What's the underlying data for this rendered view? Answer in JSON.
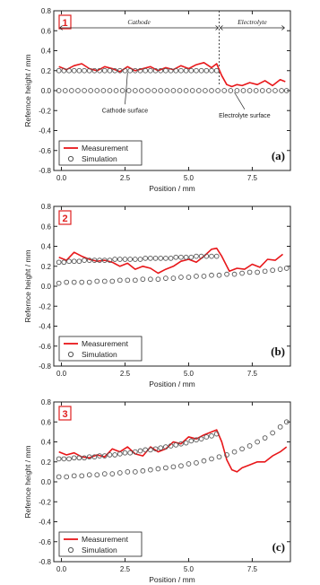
{
  "figure": {
    "colors": {
      "measurement": "#e8171a",
      "simulation": "#555555",
      "axis": "#222222",
      "badge": "#e02020"
    }
  },
  "chart_data": [
    {
      "type": "line",
      "panel_number": "1",
      "panel_letter": "(a)",
      "xlabel": "Position  /  mm",
      "ylabel": "Refernce height  /  mm",
      "xlim": [
        -0.3,
        9.0
      ],
      "ylim": [
        -0.8,
        0.8
      ],
      "xticks": [
        "0.0",
        "2.5",
        "5.0",
        "7.5"
      ],
      "yticks": [
        "0.8",
        "0.6",
        "0.4",
        "0.2",
        "0.0",
        "-0.2",
        "-0.4",
        "-0.6",
        "-0.8"
      ],
      "legend": {
        "position": "bottom-left",
        "entries": [
          "Measurement",
          "Simulation"
        ]
      },
      "regions": [
        {
          "label": "Cathode",
          "from": -0.1,
          "to": 6.2
        },
        {
          "label": "Electrolyte",
          "from": 6.2,
          "to": 8.8
        }
      ],
      "annotations": [
        {
          "text": "Cathode surface",
          "x": 2.5,
          "y": -0.2
        },
        {
          "text": "Electrolyte surface",
          "x": 7.2,
          "y": -0.25
        }
      ],
      "series": [
        {
          "name": "Measurement",
          "style": "line",
          "x": [
            -0.1,
            0.2,
            0.5,
            0.8,
            1.1,
            1.4,
            1.7,
            2.0,
            2.3,
            2.6,
            2.9,
            3.2,
            3.5,
            3.8,
            4.1,
            4.4,
            4.7,
            5.0,
            5.3,
            5.6,
            5.9,
            6.1,
            6.3,
            6.5,
            6.7,
            6.9,
            7.1,
            7.4,
            7.7,
            8.0,
            8.3,
            8.6,
            8.8
          ],
          "y": [
            0.24,
            0.21,
            0.25,
            0.27,
            0.22,
            0.2,
            0.24,
            0.22,
            0.19,
            0.24,
            0.2,
            0.22,
            0.24,
            0.2,
            0.23,
            0.21,
            0.25,
            0.22,
            0.26,
            0.28,
            0.23,
            0.27,
            0.15,
            0.06,
            0.04,
            0.06,
            0.05,
            0.08,
            0.06,
            0.1,
            0.05,
            0.11,
            0.09
          ]
        },
        {
          "name": "Simulation",
          "style": "markers",
          "x": [
            -0.1,
            0.1,
            0.3,
            0.5,
            0.7,
            0.9,
            1.1,
            1.3,
            1.5,
            1.7,
            1.9,
            2.1,
            2.3,
            2.5,
            2.7,
            2.9,
            3.1,
            3.3,
            3.5,
            3.7,
            3.9,
            4.1,
            4.3,
            4.5,
            4.7,
            4.9,
            5.1,
            5.3,
            5.5,
            5.7,
            5.9,
            6.1,
            -0.1,
            0.15,
            0.4,
            0.65,
            0.9,
            1.15,
            1.4,
            1.65,
            1.9,
            2.15,
            2.4,
            2.65,
            2.9,
            3.15,
            3.4,
            3.65,
            3.9,
            4.15,
            4.4,
            4.65,
            4.9,
            5.15,
            5.4,
            5.65,
            5.9,
            6.15,
            6.4,
            6.65,
            6.9,
            7.15,
            7.4,
            7.65,
            7.9,
            8.15,
            8.4,
            8.65,
            8.85
          ],
          "y": [
            0.2,
            0.2,
            0.2,
            0.2,
            0.2,
            0.2,
            0.2,
            0.2,
            0.2,
            0.2,
            0.2,
            0.2,
            0.2,
            0.2,
            0.2,
            0.2,
            0.2,
            0.2,
            0.2,
            0.2,
            0.2,
            0.2,
            0.2,
            0.2,
            0.2,
            0.2,
            0.2,
            0.2,
            0.2,
            0.2,
            0.2,
            0.2,
            0.0,
            0.0,
            0.0,
            0.0,
            0.0,
            0.0,
            0.0,
            0.0,
            0.0,
            0.0,
            0.0,
            0.0,
            0.0,
            0.0,
            0.0,
            0.0,
            0.0,
            0.0,
            0.0,
            0.0,
            0.0,
            0.0,
            0.0,
            0.0,
            0.0,
            0.0,
            0.0,
            0.0,
            0.0,
            0.0,
            0.0,
            0.0,
            0.0,
            0.0,
            0.0,
            0.0,
            0.0
          ]
        }
      ]
    },
    {
      "type": "line",
      "panel_number": "2",
      "panel_letter": "(b)",
      "xlabel": "Position  /  mm",
      "ylabel": "Refernce height  /  mm",
      "xlim": [
        -0.3,
        9.0
      ],
      "ylim": [
        -0.8,
        0.8
      ],
      "xticks": [
        "0.0",
        "2.5",
        "5.0",
        "7.5"
      ],
      "yticks": [
        "0.8",
        "0.6",
        "0.4",
        "0.2",
        "0.0",
        "-0.2",
        "-0.4",
        "-0.6",
        "-0.8"
      ],
      "legend": {
        "position": "bottom-left",
        "entries": [
          "Measurement",
          "Simulation"
        ]
      },
      "series": [
        {
          "name": "Measurement",
          "style": "line",
          "x": [
            -0.1,
            0.2,
            0.5,
            0.8,
            1.1,
            1.4,
            1.7,
            2.0,
            2.3,
            2.6,
            2.9,
            3.2,
            3.5,
            3.8,
            4.1,
            4.4,
            4.7,
            5.0,
            5.3,
            5.6,
            5.9,
            6.1,
            6.3,
            6.6,
            6.9,
            7.2,
            7.5,
            7.8,
            8.1,
            8.4,
            8.7
          ],
          "y": [
            0.29,
            0.26,
            0.34,
            0.3,
            0.27,
            0.25,
            0.26,
            0.24,
            0.2,
            0.23,
            0.17,
            0.2,
            0.18,
            0.13,
            0.17,
            0.2,
            0.25,
            0.27,
            0.24,
            0.3,
            0.37,
            0.38,
            0.3,
            0.15,
            0.18,
            0.17,
            0.22,
            0.19,
            0.27,
            0.26,
            0.32
          ]
        },
        {
          "name": "Simulation",
          "style": "markers",
          "x": [
            -0.1,
            0.1,
            0.3,
            0.5,
            0.7,
            0.9,
            1.1,
            1.3,
            1.5,
            1.7,
            1.9,
            2.1,
            2.3,
            2.5,
            2.7,
            2.9,
            3.1,
            3.3,
            3.5,
            3.7,
            3.9,
            4.1,
            4.3,
            4.5,
            4.7,
            4.9,
            5.1,
            5.3,
            5.5,
            5.7,
            5.9,
            6.1,
            -0.1,
            0.2,
            0.5,
            0.8,
            1.1,
            1.4,
            1.7,
            2.0,
            2.3,
            2.6,
            2.9,
            3.2,
            3.5,
            3.8,
            4.1,
            4.4,
            4.7,
            5.0,
            5.3,
            5.6,
            5.9,
            6.2,
            6.5,
            6.8,
            7.1,
            7.4,
            7.7,
            8.0,
            8.3,
            8.6,
            8.85
          ],
          "y": [
            0.24,
            0.24,
            0.25,
            0.25,
            0.25,
            0.26,
            0.26,
            0.26,
            0.26,
            0.26,
            0.26,
            0.27,
            0.27,
            0.27,
            0.27,
            0.27,
            0.27,
            0.28,
            0.28,
            0.28,
            0.28,
            0.28,
            0.28,
            0.29,
            0.29,
            0.29,
            0.29,
            0.3,
            0.3,
            0.3,
            0.3,
            0.3,
            0.03,
            0.04,
            0.04,
            0.04,
            0.04,
            0.05,
            0.05,
            0.05,
            0.06,
            0.06,
            0.06,
            0.07,
            0.07,
            0.07,
            0.08,
            0.08,
            0.09,
            0.09,
            0.1,
            0.1,
            0.11,
            0.11,
            0.12,
            0.12,
            0.13,
            0.14,
            0.14,
            0.15,
            0.16,
            0.17,
            0.18
          ]
        }
      ]
    },
    {
      "type": "line",
      "panel_number": "3",
      "panel_letter": "(c)",
      "xlabel": "Position  /  mm",
      "ylabel": "Refernce height  /  mm",
      "xlim": [
        -0.3,
        9.0
      ],
      "ylim": [
        -0.8,
        0.8
      ],
      "xticks": [
        "0.0",
        "2.5",
        "5.0",
        "7.5"
      ],
      "yticks": [
        "0.8",
        "0.6",
        "0.4",
        "0.2",
        "0.0",
        "-0.2",
        "-0.4",
        "-0.6",
        "-0.8"
      ],
      "legend": {
        "position": "bottom-left",
        "entries": [
          "Measurement",
          "Simulation"
        ]
      },
      "series": [
        {
          "name": "Measurement",
          "style": "line",
          "x": [
            -0.1,
            0.2,
            0.5,
            0.8,
            1.1,
            1.4,
            1.7,
            2.0,
            2.3,
            2.6,
            2.9,
            3.2,
            3.5,
            3.8,
            4.1,
            4.4,
            4.7,
            5.0,
            5.3,
            5.6,
            5.9,
            6.1,
            6.3,
            6.5,
            6.7,
            6.9,
            7.1,
            7.4,
            7.7,
            8.0,
            8.3,
            8.6,
            8.85
          ],
          "y": [
            0.3,
            0.27,
            0.29,
            0.25,
            0.24,
            0.27,
            0.25,
            0.33,
            0.3,
            0.35,
            0.28,
            0.26,
            0.35,
            0.3,
            0.33,
            0.4,
            0.38,
            0.45,
            0.43,
            0.47,
            0.5,
            0.52,
            0.4,
            0.22,
            0.12,
            0.1,
            0.14,
            0.17,
            0.2,
            0.2,
            0.26,
            0.3,
            0.35
          ]
        },
        {
          "name": "Simulation",
          "style": "markers",
          "x": [
            -0.1,
            0.1,
            0.3,
            0.5,
            0.7,
            0.9,
            1.1,
            1.3,
            1.5,
            1.7,
            1.9,
            2.1,
            2.3,
            2.5,
            2.7,
            2.9,
            3.1,
            3.3,
            3.5,
            3.7,
            3.9,
            4.1,
            4.3,
            4.5,
            4.7,
            4.9,
            5.1,
            5.3,
            5.5,
            5.7,
            5.9,
            6.1,
            -0.1,
            0.2,
            0.5,
            0.8,
            1.1,
            1.4,
            1.7,
            2.0,
            2.3,
            2.6,
            2.9,
            3.2,
            3.5,
            3.8,
            4.1,
            4.4,
            4.7,
            5.0,
            5.3,
            5.6,
            5.9,
            6.2,
            6.5,
            6.8,
            7.1,
            7.4,
            7.7,
            8.0,
            8.3,
            8.6,
            8.85
          ],
          "y": [
            0.23,
            0.23,
            0.23,
            0.24,
            0.24,
            0.24,
            0.25,
            0.25,
            0.26,
            0.26,
            0.27,
            0.27,
            0.28,
            0.29,
            0.29,
            0.3,
            0.31,
            0.32,
            0.32,
            0.33,
            0.34,
            0.35,
            0.36,
            0.37,
            0.38,
            0.39,
            0.41,
            0.42,
            0.43,
            0.45,
            0.46,
            0.48,
            0.05,
            0.05,
            0.06,
            0.06,
            0.07,
            0.07,
            0.08,
            0.08,
            0.09,
            0.1,
            0.1,
            0.11,
            0.12,
            0.13,
            0.14,
            0.15,
            0.16,
            0.18,
            0.19,
            0.21,
            0.23,
            0.25,
            0.27,
            0.3,
            0.33,
            0.36,
            0.4,
            0.44,
            0.49,
            0.55,
            0.6
          ]
        }
      ]
    }
  ]
}
